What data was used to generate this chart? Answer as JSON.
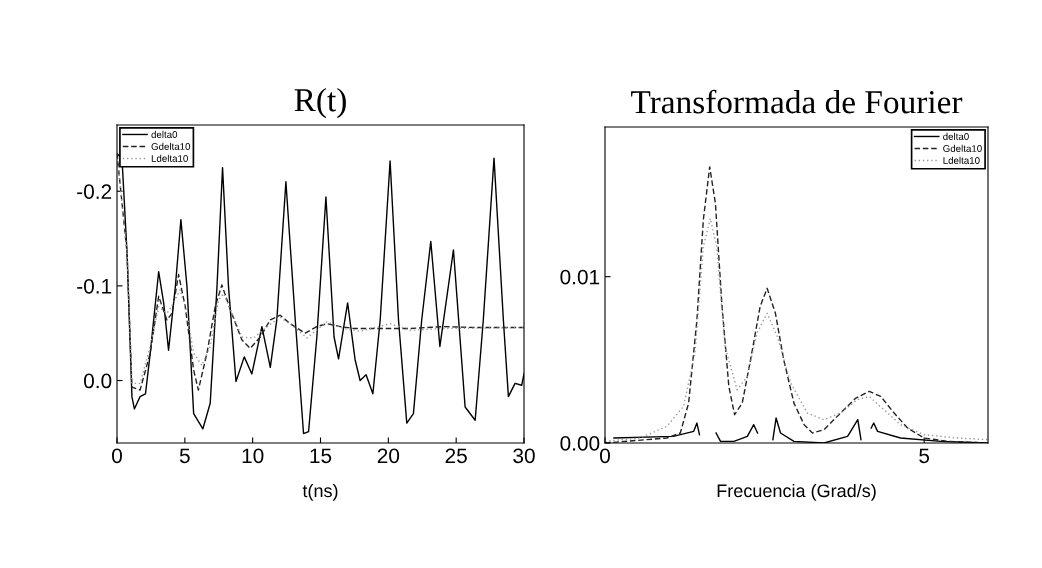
{
  "chart_data": [
    {
      "type": "line",
      "title": "R(t)",
      "xlabel": "t(ns)",
      "xlim": [
        0,
        30
      ],
      "ylim": [
        0.066,
        -0.27
      ],
      "xticks": [
        0,
        5,
        10,
        15,
        20,
        25,
        30
      ],
      "yticks": [
        {
          "value": -0.2,
          "label": "-0.2"
        },
        {
          "value": -0.1,
          "label": "-0.1"
        },
        {
          "value": 0.0,
          "label": "0.0"
        }
      ],
      "legend": "top left",
      "grid": false,
      "series": [
        {
          "name": "delta0",
          "color": "#000000",
          "line_style": "solid",
          "x": [
            0,
            0.37,
            0.74,
            1.1,
            1.28,
            1.7,
            2.1,
            2.45,
            3.07,
            3.44,
            3.8,
            4.3,
            4.71,
            5.16,
            5.65,
            6.33,
            6.87,
            7.37,
            7.78,
            8.22,
            8.77,
            9.38,
            9.94,
            10.68,
            11.3,
            11.78,
            12.45,
            13.14,
            13.75,
            14.12,
            14.73,
            15.4,
            16.0,
            16.33,
            17.0,
            17.55,
            17.92,
            18.36,
            18.86,
            19.4,
            20.13,
            20.75,
            21.36,
            21.85,
            22.46,
            23.13,
            23.8,
            24.8,
            25.66,
            26.4,
            27.0,
            27.79,
            28.48,
            28.85,
            29.34,
            29.83,
            30
          ],
          "values": [
            -0.24,
            -0.234,
            -0.135,
            0.017,
            0.03,
            0.017,
            0.014,
            -0.029,
            -0.115,
            -0.082,
            -0.032,
            -0.099,
            -0.17,
            -0.099,
            0.035,
            0.051,
            0.024,
            -0.099,
            -0.225,
            -0.099,
            0.001,
            -0.025,
            -0.007,
            -0.057,
            -0.014,
            -0.064,
            -0.21,
            -0.064,
            0.056,
            0.054,
            -0.046,
            -0.194,
            -0.046,
            -0.023,
            -0.082,
            -0.022,
            0.0,
            -0.006,
            0.014,
            -0.064,
            -0.232,
            -0.064,
            0.045,
            0.035,
            -0.064,
            -0.147,
            -0.036,
            -0.138,
            0.028,
            0.042,
            -0.064,
            -0.235,
            -0.064,
            0.017,
            0.003,
            0.005,
            -0.007
          ]
        },
        {
          "name": "Gdelta10",
          "color": "#222222",
          "line_style": "dashed",
          "x": [
            0,
            0.74,
            1.1,
            1.7,
            2.45,
            3.07,
            3.68,
            4.05,
            4.54,
            5.03,
            5.65,
            6.0,
            6.63,
            7.24,
            7.73,
            8.35,
            9.2,
            9.82,
            10.56,
            11.3,
            12.03,
            12.77,
            13.87,
            14.73,
            15.47,
            16.45,
            17.43,
            19.15,
            21.6,
            24.06,
            26.5,
            30
          ],
          "values": [
            -0.24,
            -0.135,
            0.007,
            0.01,
            -0.029,
            -0.089,
            -0.064,
            -0.071,
            -0.112,
            -0.078,
            -0.011,
            0.01,
            -0.029,
            -0.078,
            -0.101,
            -0.075,
            -0.043,
            -0.034,
            -0.046,
            -0.064,
            -0.069,
            -0.06,
            -0.05,
            -0.057,
            -0.06,
            -0.057,
            -0.055,
            -0.055,
            -0.055,
            -0.057,
            -0.056,
            -0.056
          ]
        },
        {
          "name": "Ldelta10",
          "color": "#999999",
          "line_style": "dotted",
          "x": [
            0,
            0.74,
            1.1,
            1.7,
            2.45,
            3.07,
            3.68,
            4.17,
            4.66,
            5.16,
            5.65,
            6.26,
            6.87,
            7.49,
            7.86,
            8.47,
            9.2,
            10.07,
            11.05,
            12.03,
            13.01,
            14.0,
            15.47,
            16.7,
            17.92,
            20.13,
            21.6,
            24.06,
            30
          ],
          "values": [
            -0.24,
            -0.135,
            0.003,
            0.003,
            -0.036,
            -0.078,
            -0.071,
            -0.082,
            -0.096,
            -0.071,
            -0.029,
            -0.016,
            -0.036,
            -0.085,
            -0.092,
            -0.071,
            -0.046,
            -0.045,
            -0.057,
            -0.067,
            -0.057,
            -0.045,
            -0.062,
            -0.055,
            -0.052,
            -0.06,
            -0.053,
            -0.055,
            -0.056
          ]
        }
      ]
    },
    {
      "type": "line",
      "title": "Transformada de Fourier",
      "xlabel": "Frecuencia (Grad/s)",
      "xlim": [
        0,
        6
      ],
      "ylim": [
        0,
        0.019
      ],
      "xticks": [
        0,
        5
      ],
      "yticks": [
        {
          "value": 0,
          "label": "0.00"
        },
        {
          "value": 0.01,
          "label": "0.01"
        }
      ],
      "legend": "top right",
      "grid": false,
      "series": [
        {
          "name": "delta0",
          "color": "#000000",
          "line_style": "solid",
          "x": [
            0.14,
            1.07,
            1.39,
            1.44,
            1.48,
            1.53,
            1.7,
            1.74,
            1.81,
            2.02,
            2.23,
            2.33,
            2.39,
            2.5,
            2.62,
            2.63,
            2.68,
            2.75,
            2.96,
            3.43,
            3.8,
            3.96,
            4.01,
            4.04,
            4.16,
            4.17,
            4.21,
            4.27,
            4.63,
            5.26,
            6.0
          ],
          "values": [
            0.0003,
            0.0004,
            0.0007,
            0.0012,
            0.0005,
            null,
            null,
            0.0006,
            0.0001,
            0.0001,
            0.0004,
            0.0011,
            0.0006,
            null,
            null,
            0.0002,
            0.0015,
            0.0006,
            0.0001,
            0.0,
            0.0004,
            0.0014,
            0.0002,
            null,
            null,
            0.0009,
            0.0012,
            0.0007,
            0.0003,
            0.0001,
            0.0
          ]
        },
        {
          "name": "Gdelta10",
          "color": "#222222",
          "line_style": "dashed",
          "x": [
            0,
            0.97,
            1.18,
            1.31,
            1.44,
            1.54,
            1.64,
            1.73,
            1.83,
            1.94,
            2.03,
            2.15,
            2.28,
            2.43,
            2.54,
            2.67,
            2.8,
            2.96,
            3.12,
            3.25,
            3.43,
            3.69,
            3.93,
            4.14,
            4.32,
            4.53,
            4.74,
            5.0,
            5.37,
            6.0
          ],
          "values": [
            0.0,
            0.0003,
            0.0006,
            0.0024,
            0.0074,
            0.0134,
            0.0166,
            0.0144,
            0.0084,
            0.0034,
            0.0017,
            0.0024,
            0.005,
            0.0082,
            0.0093,
            0.0078,
            0.005,
            0.0024,
            0.0011,
            0.0006,
            0.0008,
            0.0018,
            0.0027,
            0.0031,
            0.0028,
            0.0018,
            0.0009,
            0.0003,
            0.0001,
            0.0
          ]
        },
        {
          "name": "Ldelta10",
          "color": "#999999",
          "line_style": "dotted",
          "x": [
            0,
            0.55,
            0.97,
            1.23,
            1.41,
            1.54,
            1.65,
            1.75,
            1.88,
            2.07,
            2.23,
            2.38,
            2.54,
            2.7,
            2.91,
            3.17,
            3.43,
            3.69,
            3.95,
            4.14,
            4.37,
            4.63,
            5.0,
            5.52,
            6.0
          ],
          "values": [
            0.0001,
            0.0003,
            0.001,
            0.0022,
            0.0054,
            0.0118,
            0.0135,
            0.0118,
            0.0058,
            0.0032,
            0.004,
            0.0066,
            0.0078,
            0.0064,
            0.0036,
            0.0018,
            0.0014,
            0.0018,
            0.0026,
            0.0028,
            0.002,
            0.0011,
            0.0005,
            0.0003,
            0.0002
          ]
        }
      ]
    }
  ]
}
